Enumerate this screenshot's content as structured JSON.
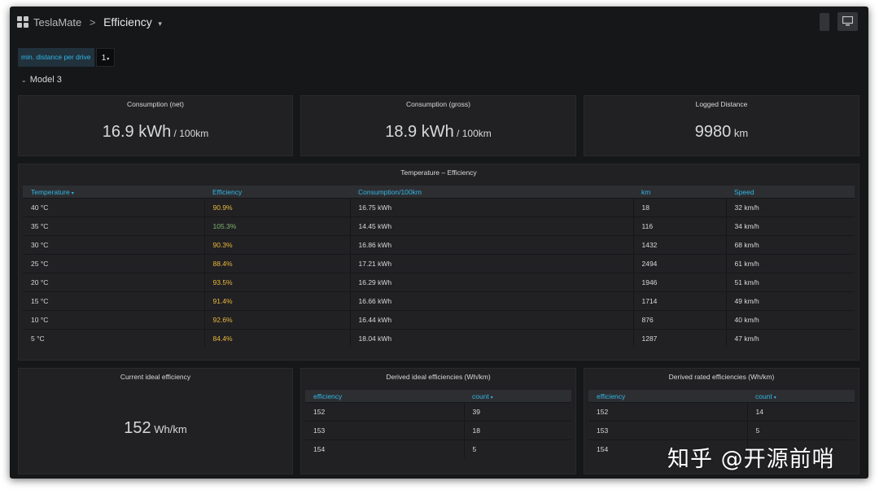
{
  "breadcrumb": {
    "parent": "TeslaMate",
    "separator": ">",
    "current": "Efficiency",
    "caret": "▾"
  },
  "variables": {
    "label": "min. distance per drive",
    "value": "1",
    "caret": "▾"
  },
  "row": {
    "chevron": "⌄",
    "title": "Model 3"
  },
  "stat_net": {
    "title": "Consumption (net)",
    "value": "16.9 kWh",
    "unit": " / 100km"
  },
  "stat_gross": {
    "title": "Consumption (gross)",
    "value": "18.9 kWh",
    "unit": " / 100km"
  },
  "stat_distance": {
    "title": "Logged Distance",
    "value": "9980",
    "unit": " km"
  },
  "temp_table": {
    "title": "Temperature – Efficiency",
    "headers": [
      "Temperature",
      "Efficiency",
      "Consumption/100km",
      "km",
      "Speed"
    ],
    "sort_caret": "▾",
    "rows": [
      {
        "temp": "40 °C",
        "eff": "90.9%",
        "cons": "16.75 kWh",
        "km": "18",
        "speed": "32 km/h"
      },
      {
        "temp": "35 °C",
        "eff": "105.3%",
        "cons": "14.45 kWh",
        "km": "116",
        "speed": "34 km/h"
      },
      {
        "temp": "30 °C",
        "eff": "90.3%",
        "cons": "16.86 kWh",
        "km": "1432",
        "speed": "68 km/h"
      },
      {
        "temp": "25 °C",
        "eff": "88.4%",
        "cons": "17.21 kWh",
        "km": "2494",
        "speed": "61 km/h"
      },
      {
        "temp": "20 °C",
        "eff": "93.5%",
        "cons": "16.29 kWh",
        "km": "1946",
        "speed": "51 km/h"
      },
      {
        "temp": "15 °C",
        "eff": "91.4%",
        "cons": "16.66 kWh",
        "km": "1714",
        "speed": "49 km/h"
      },
      {
        "temp": "10 °C",
        "eff": "92.6%",
        "cons": "16.44 kWh",
        "km": "876",
        "speed": "40 km/h"
      },
      {
        "temp": "5 °C",
        "eff": "84.4%",
        "cons": "18.04 kWh",
        "km": "1287",
        "speed": "47 km/h"
      }
    ]
  },
  "current_ideal": {
    "title": "Current ideal efficiency",
    "value": "152",
    "unit": " Wh/km"
  },
  "derived_ideal": {
    "title": "Derived ideal efficiencies (Wh/km)",
    "headers": [
      "efficiency",
      "count"
    ],
    "sort_caret": "▾",
    "rows": [
      {
        "efficiency": "152",
        "count": "39"
      },
      {
        "efficiency": "153",
        "count": "18"
      },
      {
        "efficiency": "154",
        "count": "5"
      }
    ]
  },
  "derived_rated": {
    "title": "Derived rated efficiencies (Wh/km)",
    "headers": [
      "efficiency",
      "count"
    ],
    "sort_caret": "▾",
    "rows": [
      {
        "efficiency": "152",
        "count": "14"
      },
      {
        "efficiency": "153",
        "count": "5"
      },
      {
        "efficiency": "154",
        "count": ""
      }
    ]
  },
  "watermark": "知乎 @开源前哨",
  "colors": {
    "background": "#161719",
    "panel": "#212124",
    "accent_blue": "#33b5e5",
    "efficiency_orange": "#eab839",
    "efficiency_green": "#7eb26d"
  },
  "icons": [
    "apps-grid-icon",
    "chevron-down-icon",
    "tv-mode-icon",
    "sort-desc-icon"
  ]
}
